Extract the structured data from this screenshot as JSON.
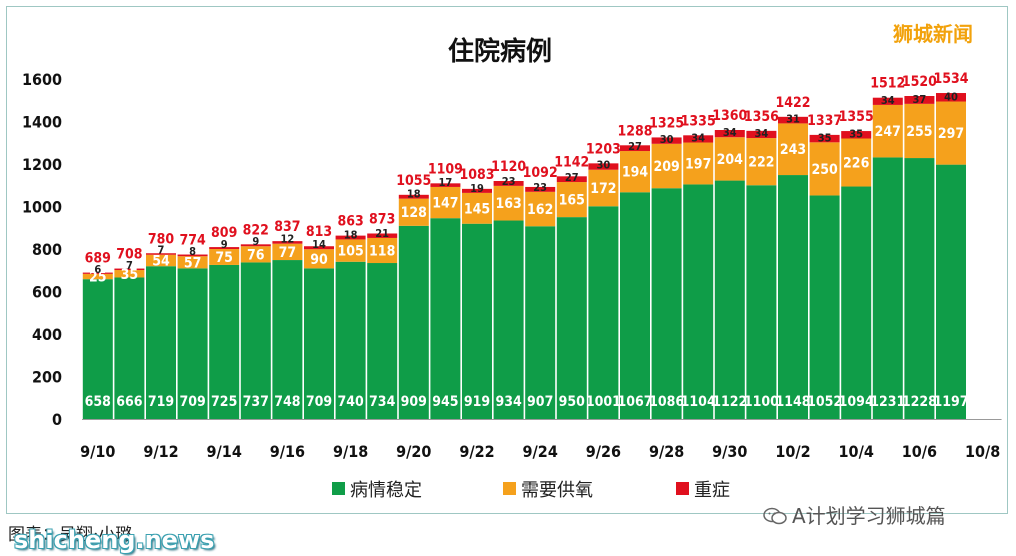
{
  "brand_text": "狮城新闻",
  "caption": "图表：吴翔·小璐",
  "watermark_left": "shicheng.news",
  "watermark_right": "A计划学习狮城篇",
  "watermark_icon": "wechat-icon",
  "chart_data": {
    "type": "bar",
    "stacked": true,
    "title": "住院病例",
    "categories": [
      "9/10",
      "9/11",
      "9/12",
      "9/13",
      "9/14",
      "9/15",
      "9/16",
      "9/17",
      "9/18",
      "9/19",
      "9/20",
      "9/21",
      "9/22",
      "9/23",
      "9/24",
      "9/25",
      "9/26",
      "9/27",
      "9/28",
      "9/29",
      "9/30",
      "10/1",
      "10/2",
      "10/3",
      "10/4",
      "10/5",
      "10/6",
      "10/7"
    ],
    "x_tick_labels": [
      "9/10",
      "9/12",
      "9/14",
      "9/16",
      "9/18",
      "9/20",
      "9/22",
      "9/24",
      "9/26",
      "9/28",
      "9/30",
      "10/2",
      "10/4",
      "10/6",
      "10/8"
    ],
    "series": [
      {
        "name": "病情稳定",
        "color": "#0f9d48",
        "values": [
          658,
          666,
          719,
          709,
          725,
          737,
          748,
          709,
          740,
          734,
          909,
          945,
          919,
          934,
          907,
          950,
          1001,
          1067,
          1086,
          1104,
          1122,
          1100,
          1148,
          1052,
          1094,
          1231,
          1228,
          1197
        ]
      },
      {
        "name": "需要供氧",
        "color": "#f5a11c",
        "values": [
          25,
          35,
          54,
          57,
          75,
          76,
          77,
          90,
          105,
          118,
          128,
          147,
          145,
          163,
          162,
          165,
          172,
          194,
          209,
          197,
          204,
          222,
          243,
          250,
          226,
          247,
          255,
          297
        ]
      },
      {
        "name": "重症",
        "color": "#e0101e",
        "values": [
          6,
          7,
          7,
          8,
          9,
          9,
          12,
          14,
          18,
          21,
          18,
          17,
          19,
          23,
          23,
          27,
          30,
          27,
          30,
          34,
          34,
          34,
          31,
          35,
          35,
          34,
          37,
          40
        ]
      }
    ],
    "totals": [
      689,
      708,
      780,
      774,
      809,
      822,
      837,
      813,
      863,
      873,
      1055,
      1109,
      1083,
      1120,
      1092,
      1142,
      1203,
      1288,
      1325,
      1335,
      1360,
      1356,
      1422,
      1337,
      1355,
      1512,
      1520,
      1534
    ],
    "ylim": [
      0,
      1600
    ],
    "y_ticks": [
      0,
      200,
      400,
      600,
      800,
      1000,
      1200,
      1400,
      1600
    ],
    "grid": false,
    "legend_position": "bottom",
    "total_label_color": "#e0101e"
  }
}
